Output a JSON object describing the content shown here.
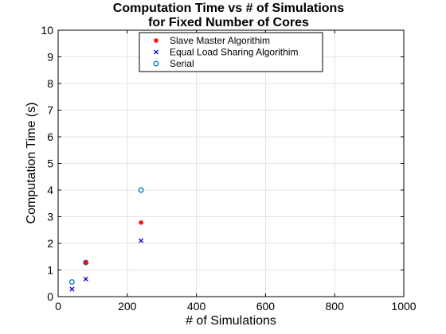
{
  "chart_data": {
    "type": "scatter",
    "title": [
      "Computation Time vs # of Simulations",
      "for Fixed Number of Cores"
    ],
    "xlabel": "# of Simulations",
    "ylabel": "Computation Time (s)",
    "xlim": [
      0,
      1000
    ],
    "ylim": [
      0,
      10
    ],
    "xticks": [
      0,
      200,
      400,
      600,
      800,
      1000
    ],
    "yticks": [
      0,
      1,
      2,
      3,
      4,
      5,
      6,
      7,
      8,
      9,
      10
    ],
    "grid": true,
    "legend_position": "top-center",
    "series": [
      {
        "name": "Slave Master Algorithim",
        "marker": "asterisk",
        "color": "#ff0000",
        "points": [
          [
            80,
            1.28
          ],
          [
            240,
            2.78
          ]
        ]
      },
      {
        "name": "Equal Load Sharing Algorithim",
        "marker": "x",
        "color": "#0000cc",
        "points": [
          [
            40,
            0.28
          ],
          [
            80,
            0.66
          ],
          [
            240,
            2.1
          ]
        ]
      },
      {
        "name": "Serial",
        "marker": "circle",
        "color": "#0072bd",
        "points": [
          [
            40,
            0.55
          ],
          [
            80,
            1.28
          ],
          [
            240,
            4.0
          ]
        ]
      }
    ]
  }
}
